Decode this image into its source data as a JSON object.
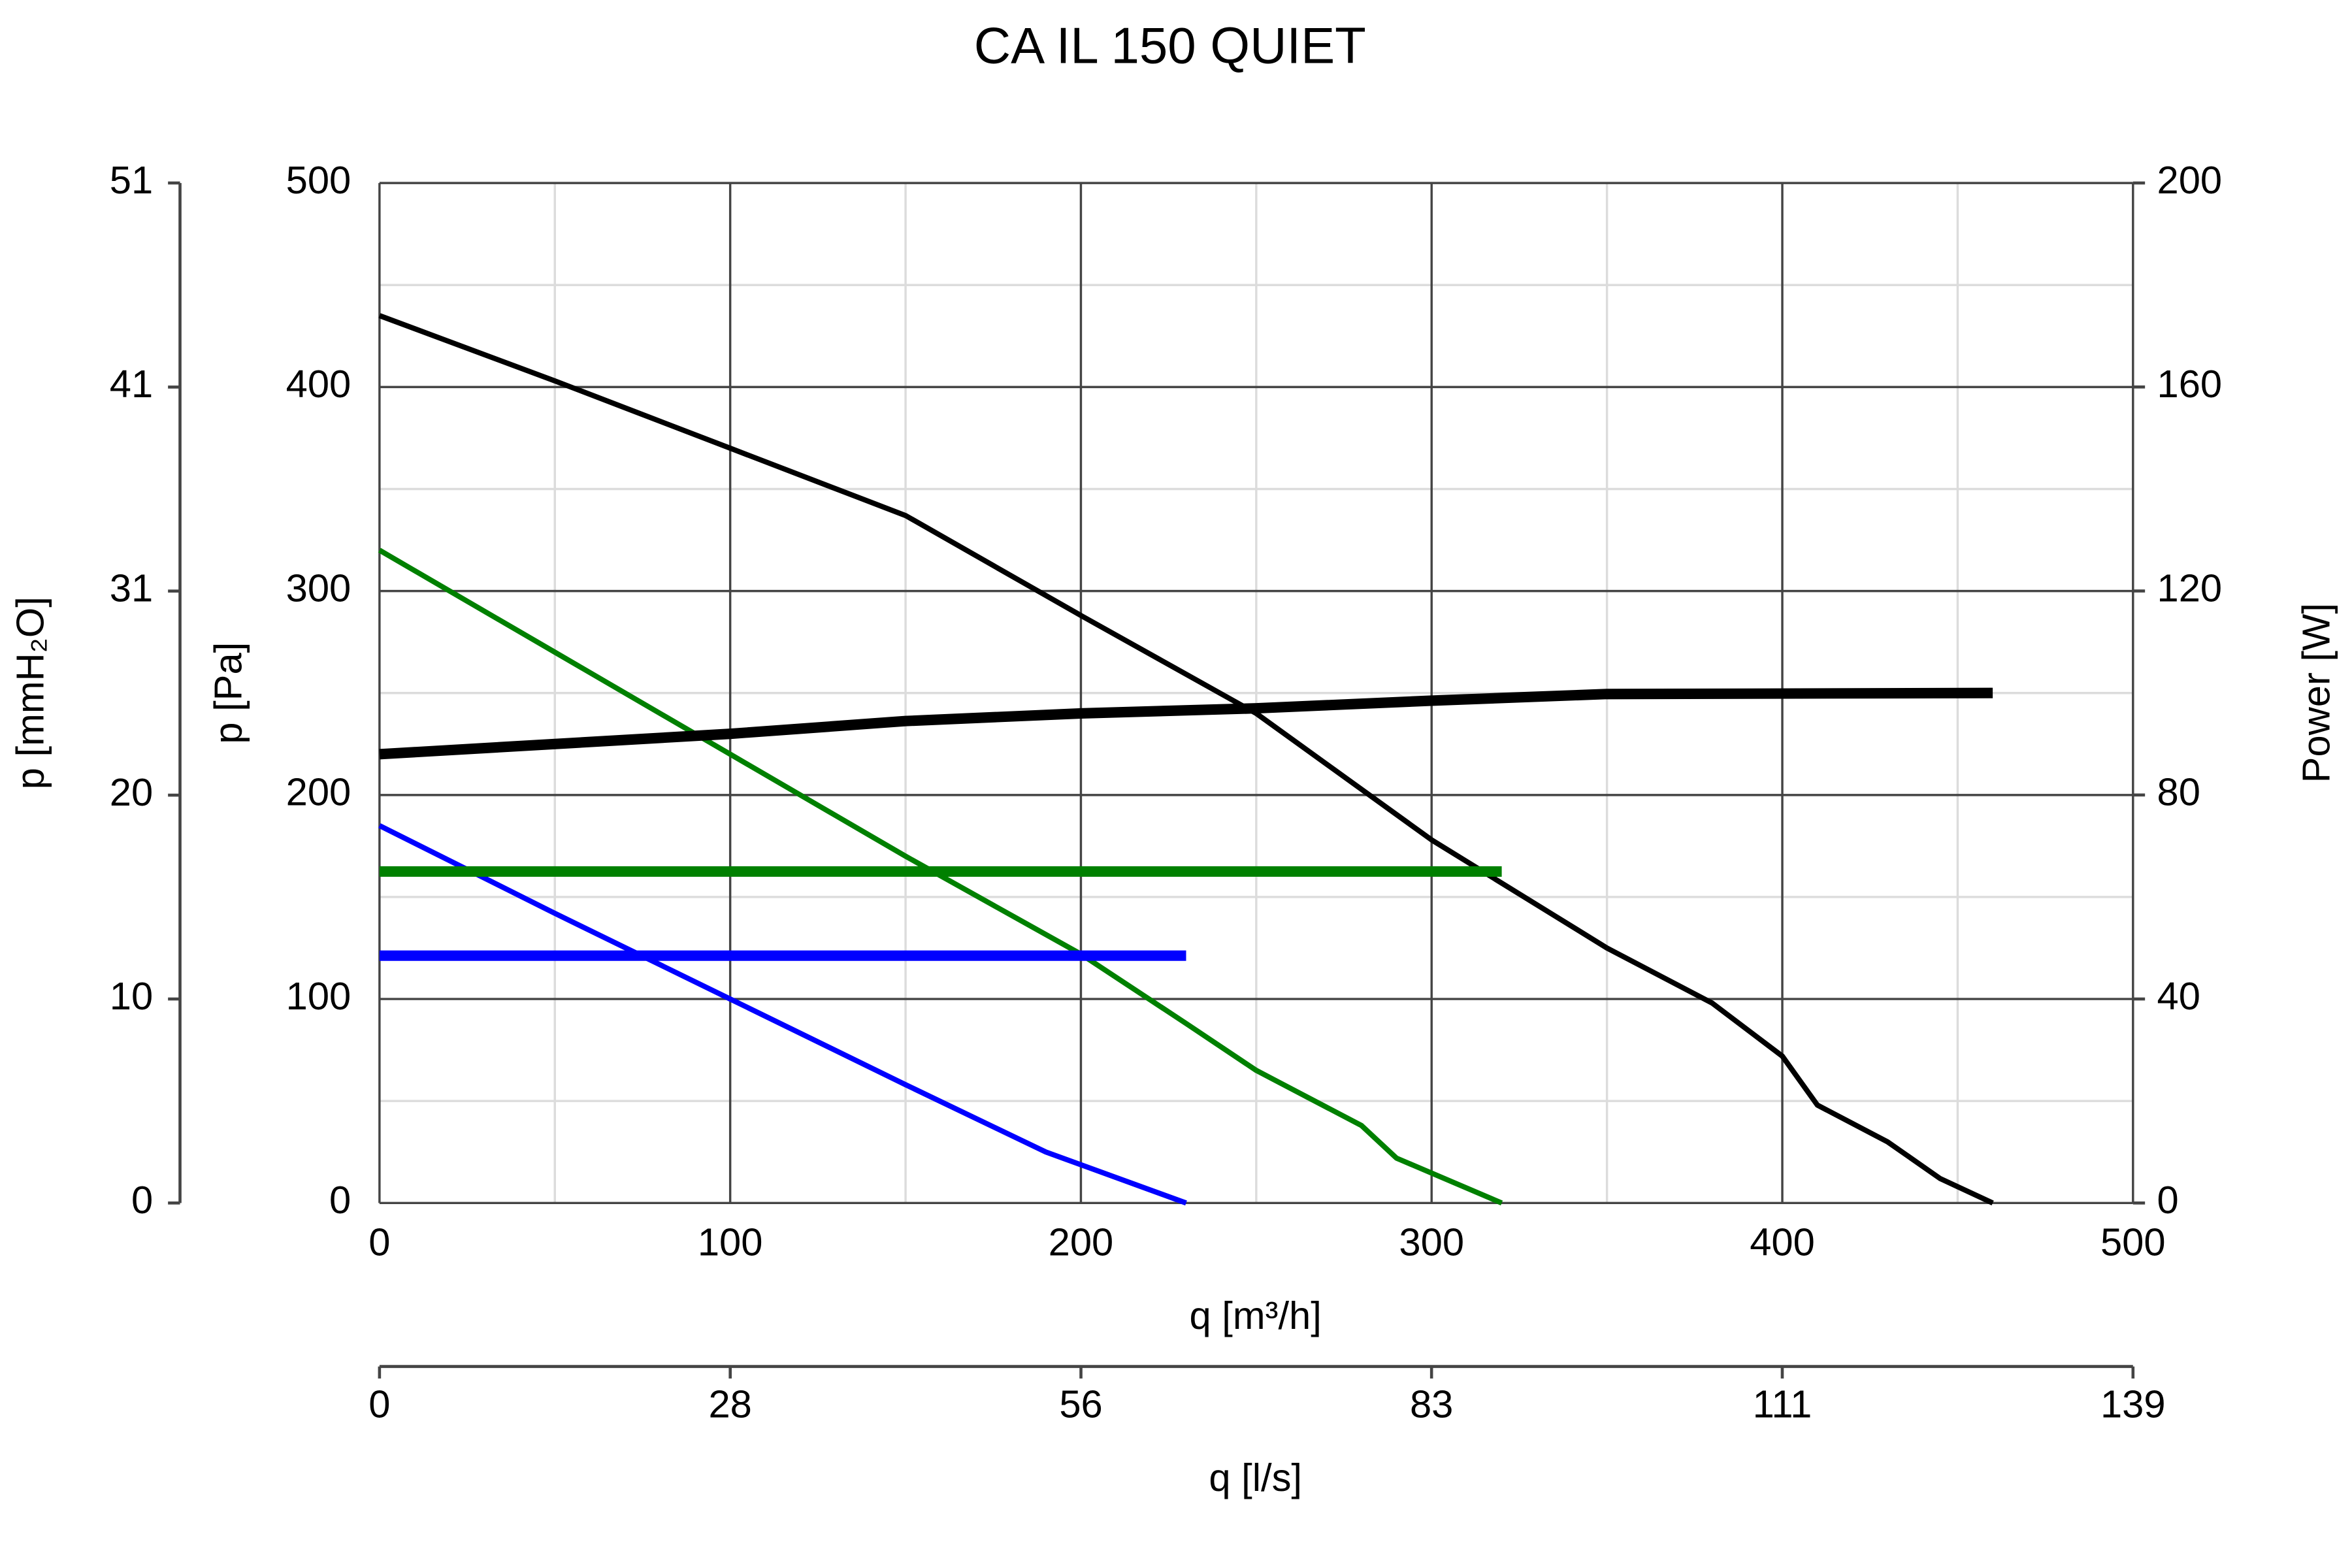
{
  "chart_data": {
    "type": "line",
    "title": "CA IL 150 QUIET",
    "xlabel": "q [m³/h]",
    "x2label": "q [l/s]",
    "ylabel": "p [Pa]",
    "y3label": "p [mmH₂O]",
    "y2label": "Power [W]",
    "grid": true,
    "xlim": [
      0,
      500
    ],
    "xticks": [
      0,
      100,
      200,
      300,
      400,
      500
    ],
    "x2lim": [
      0,
      138.89
    ],
    "x2ticks": [
      0,
      {
        "value": 27.78,
        "label": "28"
      },
      {
        "value": 55.56,
        "label": "56"
      },
      {
        "value": 83.33,
        "label": "83"
      },
      {
        "value": 111.11,
        "label": "111"
      },
      {
        "value": 138.89,
        "label": "139"
      }
    ],
    "ylim": [
      0,
      500
    ],
    "yticks": [
      0,
      100,
      200,
      300,
      400,
      500
    ],
    "y3lim": [
      0,
      50.99
    ],
    "y3ticks": [
      0,
      {
        "value": 10.2,
        "label": "10"
      },
      {
        "value": 20.39,
        "label": "20"
      },
      {
        "value": 30.59,
        "label": "31"
      },
      {
        "value": 40.79,
        "label": "41"
      },
      {
        "value": 50.99,
        "label": "51"
      }
    ],
    "y2lim": [
      0,
      200
    ],
    "y2ticks": [
      0,
      40,
      80,
      120,
      160,
      200
    ],
    "series": [
      {
        "color": "#000000",
        "axis": "y",
        "x": [
          0,
          50,
          100,
          150,
          200,
          250,
          300,
          350,
          380,
          400,
          410,
          430,
          445,
          460
        ],
        "values": [
          435,
          403,
          370,
          337,
          288,
          240,
          178,
          125,
          98,
          72,
          48,
          30,
          12,
          0
        ]
      },
      {
        "color": "#008000",
        "axis": "y",
        "x": [
          0,
          50,
          100,
          150,
          200,
          230,
          250,
          280,
          290,
          320
        ],
        "values": [
          320,
          270,
          220,
          170,
          122,
          88,
          65,
          38,
          22,
          0
        ]
      },
      {
        "color": "#0000ff",
        "axis": "y",
        "x": [
          0,
          50,
          100,
          150,
          190,
          230
        ],
        "values": [
          185,
          142,
          100,
          58,
          25,
          0
        ]
      },
      {
        "color": "#000000",
        "axis": "y2",
        "x": [
          0,
          100,
          150,
          200,
          250,
          300,
          350,
          460
        ],
        "values": [
          88,
          92,
          94.5,
          96,
          97,
          98.5,
          99.8,
          100
        ]
      },
      {
        "color": "#008000",
        "axis": "y2",
        "x": [
          0,
          320
        ],
        "values": [
          65,
          65
        ]
      },
      {
        "color": "#0000ff",
        "axis": "y2",
        "x": [
          0,
          230
        ],
        "values": [
          48.5,
          48.5
        ]
      }
    ]
  }
}
